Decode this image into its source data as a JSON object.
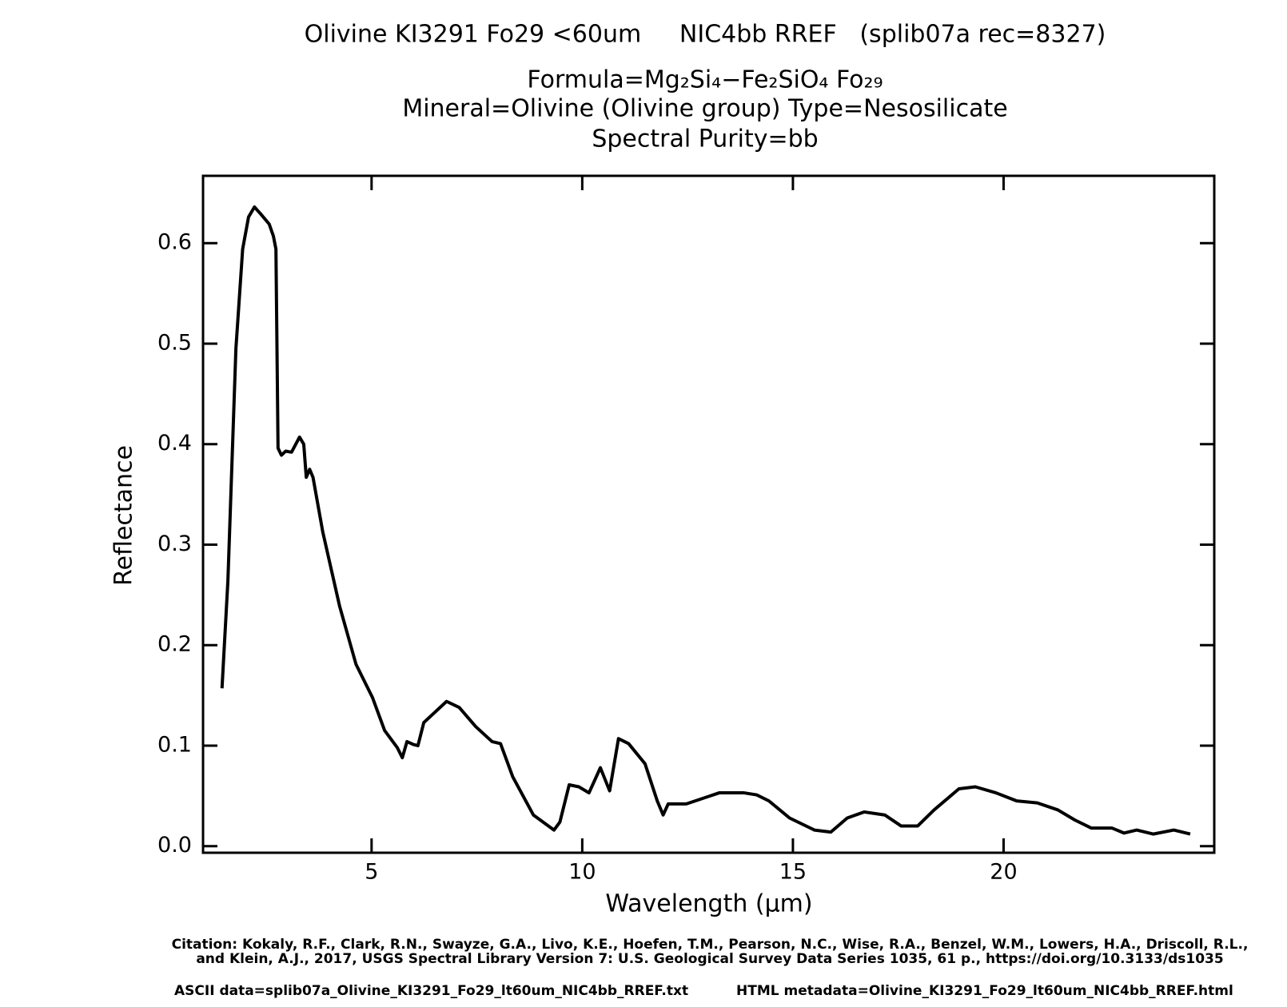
{
  "chart_data": {
    "type": "line",
    "title": "Olivine KI3291 Fo29 <60um     NIC4bb RREF   (splib07a rec=8327)",
    "subtitle": [
      "Formula=Mg₂Si₄−Fe₂SiO₄ Fo₂₉",
      "Mineral=Olivine (Olivine group)  Type=Nesosilicate",
      "Spectral Purity=bb"
    ],
    "x_label": "Wavelength (μm)",
    "y_label": "Reflectance",
    "xlim": [
      1,
      25
    ],
    "ylim": [
      -0.0066,
      0.667
    ],
    "xticks": [
      5,
      10,
      15,
      20
    ],
    "yticks": [
      {
        "value": 0,
        "label": "0.0"
      },
      0.1,
      0.2,
      0.3,
      0.4,
      0.5,
      0.6
    ],
    "grid": false,
    "x": [
      1.45,
      1.59,
      1.78,
      1.94,
      2.08,
      2.22,
      2.37,
      2.57,
      2.67,
      2.73,
      2.78,
      2.86,
      2.96,
      3.1,
      3.29,
      3.39,
      3.45,
      3.53,
      3.61,
      3.84,
      4.24,
      4.63,
      5.02,
      5.31,
      5.61,
      5.73,
      5.84,
      6.0,
      6.1,
      6.24,
      6.78,
      7.08,
      7.47,
      7.86,
      8.06,
      8.35,
      8.84,
      9.33,
      9.47,
      9.69,
      9.92,
      10.16,
      10.43,
      10.65,
      10.86,
      11.1,
      11.49,
      11.78,
      11.92,
      12.04,
      12.47,
      13.25,
      13.84,
      14.14,
      14.43,
      14.92,
      15.51,
      15.9,
      16.29,
      16.69,
      17.18,
      17.57,
      17.96,
      18.35,
      18.94,
      19.33,
      19.82,
      20.31,
      20.8,
      21.29,
      21.69,
      22.08,
      22.57,
      22.86,
      23.16,
      23.55,
      24.04,
      24.43
    ],
    "series": [
      {
        "name": "Olivine KI3291 Fo29",
        "color": "#000000",
        "values": [
          0.157,
          0.264,
          0.495,
          0.594,
          0.626,
          0.636,
          0.629,
          0.619,
          0.607,
          0.594,
          0.396,
          0.389,
          0.393,
          0.392,
          0.407,
          0.4,
          0.367,
          0.375,
          0.367,
          0.313,
          0.239,
          0.181,
          0.148,
          0.115,
          0.098,
          0.088,
          0.104,
          0.101,
          0.1,
          0.123,
          0.144,
          0.138,
          0.119,
          0.104,
          0.102,
          0.069,
          0.031,
          0.016,
          0.024,
          0.061,
          0.059,
          0.053,
          0.078,
          0.055,
          0.107,
          0.102,
          0.082,
          0.045,
          0.031,
          0.042,
          0.042,
          0.053,
          0.053,
          0.051,
          0.045,
          0.028,
          0.016,
          0.014,
          0.028,
          0.034,
          0.031,
          0.02,
          0.02,
          0.036,
          0.057,
          0.059,
          0.053,
          0.045,
          0.043,
          0.036,
          0.026,
          0.018,
          0.018,
          0.013,
          0.016,
          0.012,
          0.016,
          0.012
        ]
      }
    ],
    "annotations": [
      "Citation: Kokaly, R.F., Clark, R.N., Swayze, G.A., Livo, K.E., Hoefen, T.M., Pearson, N.C., Wise, R.A., Benzel, W.M., Lowers, H.A., Driscoll, R.L.,",
      "and Klein, A.J., 2017, USGS Spectral Library Version 7: U.S. Geological Survey Data Series 1035, 61 p., https://doi.org/10.3133/ds1035",
      "ASCII data=splib07a_Olivine_KI3291_Fo29_lt60um_NIC4bb_RREF.txt",
      "HTML metadata=Olivine_KI3291_Fo29_lt60um_NIC4bb_RREF.html"
    ]
  }
}
